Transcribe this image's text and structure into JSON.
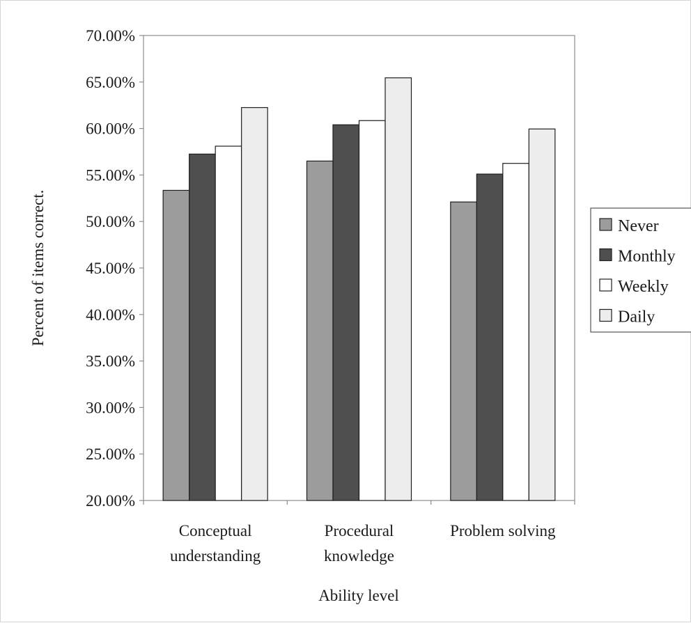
{
  "chart_data": {
    "type": "bar",
    "categories": [
      [
        "Conceptual",
        "understanding"
      ],
      [
        "Procedural",
        "knowledge"
      ],
      [
        "Problem solving"
      ]
    ],
    "series": [
      {
        "name": "Never",
        "color": "#9c9c9c",
        "values": [
          0.5335,
          0.565,
          0.521
        ]
      },
      {
        "name": "Monthly",
        "color": "#4f4f4f",
        "values": [
          0.5725,
          0.604,
          0.551
        ]
      },
      {
        "name": "Weekly",
        "color": "#ffffff",
        "values": [
          0.581,
          0.6085,
          0.5625
        ]
      },
      {
        "name": "Daily",
        "color": "#ededed",
        "values": [
          0.6225,
          0.6545,
          0.5995
        ]
      }
    ],
    "y_ticks": [
      "20.00%",
      "25.00%",
      "30.00%",
      "35.00%",
      "40.00%",
      "45.00%",
      "50.00%",
      "55.00%",
      "60.00%",
      "65.00%",
      "70.00%"
    ],
    "y_tick_values": [
      0.2,
      0.25,
      0.3,
      0.35,
      0.4,
      0.45,
      0.5,
      0.55,
      0.6,
      0.65,
      0.7
    ],
    "ylim": [
      0.2,
      0.7
    ],
    "ylabel": "Percent of items correct.",
    "xlabel": "Ability level",
    "title": "",
    "grid": false,
    "legend_position": "right"
  }
}
